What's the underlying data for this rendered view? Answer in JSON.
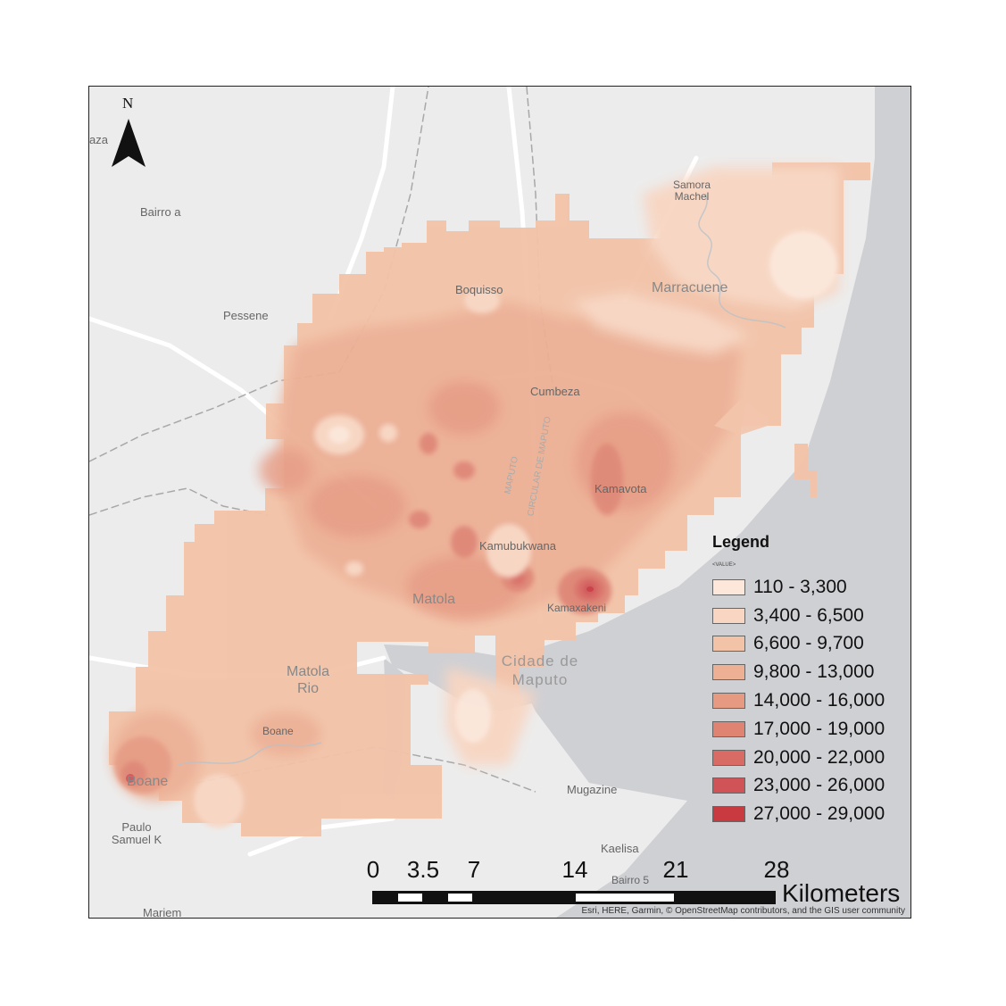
{
  "map": {
    "north_label": "N",
    "place_labels": [
      "aza",
      "Bairro a",
      "Pessene",
      "Samora Machel",
      "Marracuene",
      "Boquisso",
      "Cumbeza",
      "Kamavota",
      "Kamubukwana",
      "Matola",
      "Kamaxakeni",
      "Cidade de Maputo",
      "Matola Rio",
      "Boane",
      "Boane",
      "Mugazine",
      "Kaelisa",
      "Bairro 5",
      "Paulo Samuel K",
      "Mariem"
    ],
    "road_labels": [
      "MAPUTO",
      "CIRCULAR DE MAPUTO"
    ],
    "legend": {
      "title": "Legend",
      "field": "<VALUE>",
      "classes": [
        {
          "label": "110 - 3,300",
          "color": "#fce7da"
        },
        {
          "label": "3,400 - 6,500",
          "color": "#f8d6c2"
        },
        {
          "label": "6,600 - 9,700",
          "color": "#f3c3a8"
        },
        {
          "label": "9,800 - 13,000",
          "color": "#edb094"
        },
        {
          "label": "14,000 - 16,000",
          "color": "#e69a82"
        },
        {
          "label": "17,000 - 19,000",
          "color": "#df8473"
        },
        {
          "label": "20,000 - 22,000",
          "color": "#d86c64"
        },
        {
          "label": "23,000 - 26,000",
          "color": "#d05457"
        },
        {
          "label": "27,000 - 29,000",
          "color": "#c83a40"
        }
      ]
    },
    "scale_bar": {
      "ticks": [
        "0",
        "3.5",
        "7",
        "14",
        "21",
        "28"
      ],
      "values": [
        0,
        3.5,
        7,
        14,
        21,
        28
      ],
      "unit": "Kilometers"
    },
    "attribution": "Esri, HERE, Garmin, © OpenStreetMap contributors, and the GIS user community",
    "colors": {
      "land": "#ececec",
      "sea": "#cfd0d4",
      "roads": "#ffffff",
      "boundary": "#a8a8a8"
    }
  }
}
